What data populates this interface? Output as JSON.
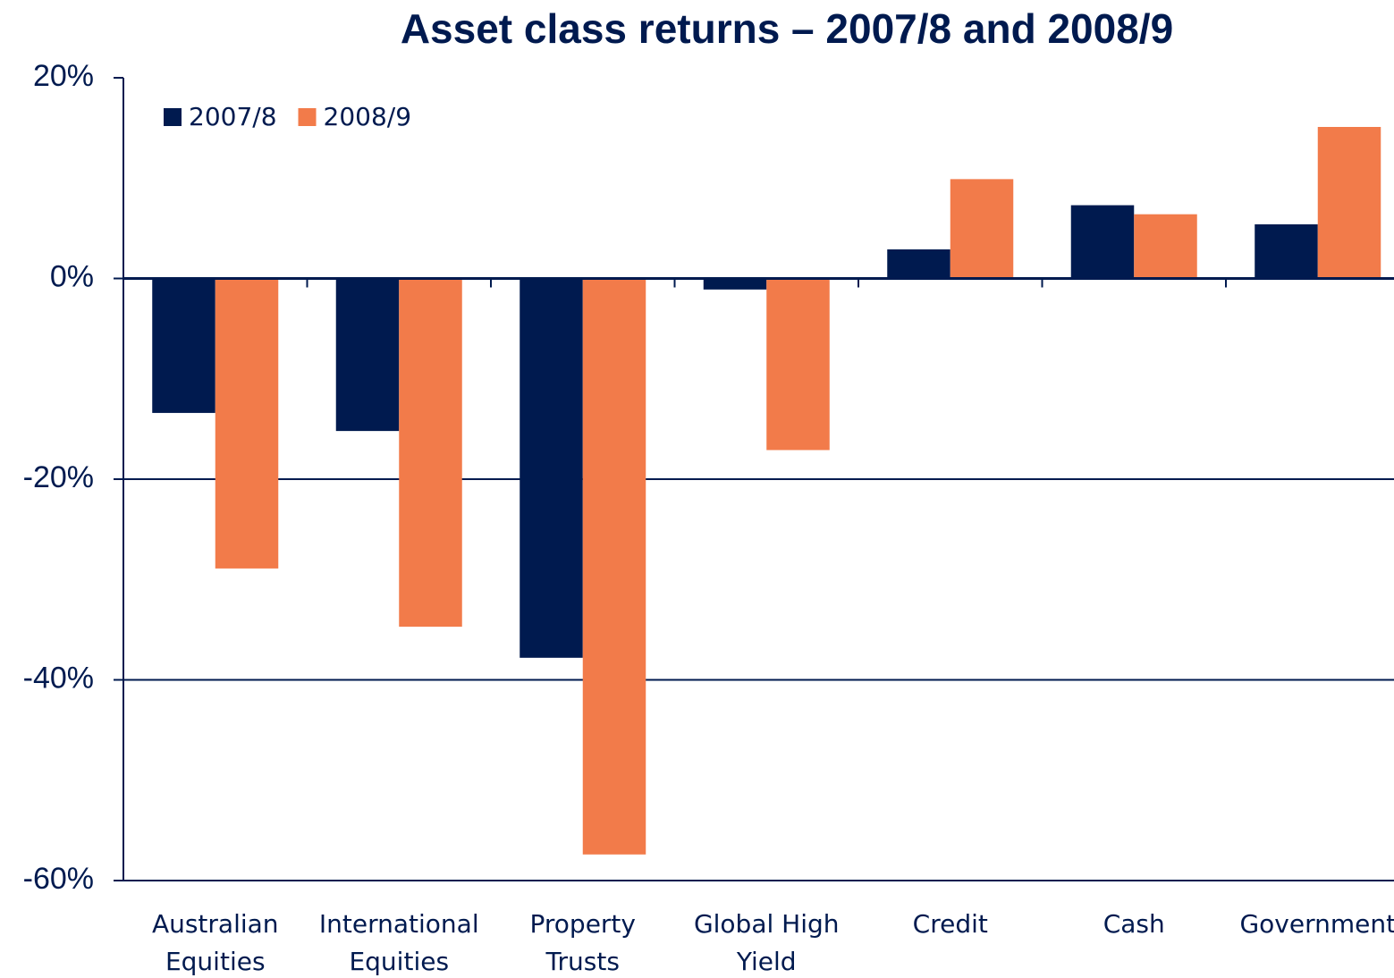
{
  "chart_data": {
    "type": "bar",
    "title": "Asset class returns – 2007/8 and 2008/9",
    "categories": [
      "Australian\nEquities",
      "International\nEquities",
      "Property\nTrusts",
      "Global High\nYield",
      "Credit",
      "Cash",
      "Government"
    ],
    "series": [
      {
        "name": "2007/8",
        "color": "#001a4f",
        "values": [
          -13.4,
          -15.2,
          -37.8,
          -1.1,
          2.9,
          7.3,
          5.4
        ]
      },
      {
        "name": "2008/9",
        "color": "#f27b4a",
        "values": [
          -28.9,
          -34.7,
          -57.4,
          -17.1,
          9.9,
          6.4,
          15.1
        ]
      }
    ],
    "ylim": [
      -60,
      20
    ],
    "yticks": [
      {
        "value": -60,
        "label": "-60%"
      },
      {
        "value": -40,
        "label": "-40%"
      },
      {
        "value": -20,
        "label": "-20%"
      },
      {
        "value": 0,
        "label": "0%"
      },
      {
        "value": 20,
        "label": "20%"
      }
    ],
    "grid": true,
    "legend": "top-left"
  }
}
